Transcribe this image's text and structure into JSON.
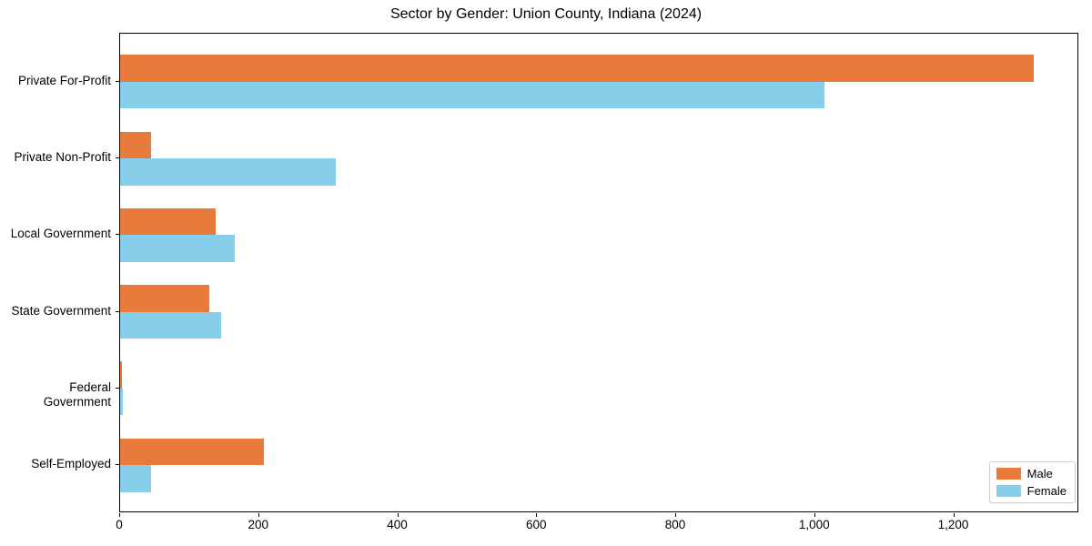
{
  "chart_data": {
    "type": "bar",
    "orientation": "horizontal",
    "title": "Sector by Gender: Union County, Indiana (2024)",
    "categories": [
      "Private For-Profit",
      "Private Non-Profit",
      "Local Government",
      "State Government",
      "Federal Government",
      "Self-Employed"
    ],
    "series": [
      {
        "name": "Male",
        "color": "#e87a3c",
        "values": [
          1314,
          45,
          137,
          128,
          2,
          207
        ]
      },
      {
        "name": "Female",
        "color": "#87ceeb",
        "values": [
          1013,
          310,
          165,
          145,
          4,
          44
        ]
      }
    ],
    "xlabel": "",
    "ylabel": "",
    "xlim": [
      0,
      1380
    ],
    "xticks": [
      0,
      200,
      400,
      600,
      800,
      1000,
      1200
    ],
    "xtick_labels": [
      "0",
      "200",
      "400",
      "600",
      "800",
      "1,000",
      "1,200"
    ],
    "legend_position": "lower right",
    "grid": false,
    "colors": {
      "male": "#e87a3c",
      "female": "#87ceeb",
      "spine": "#000000",
      "legend_border": "#cccccc",
      "background": "#ffffff"
    }
  }
}
